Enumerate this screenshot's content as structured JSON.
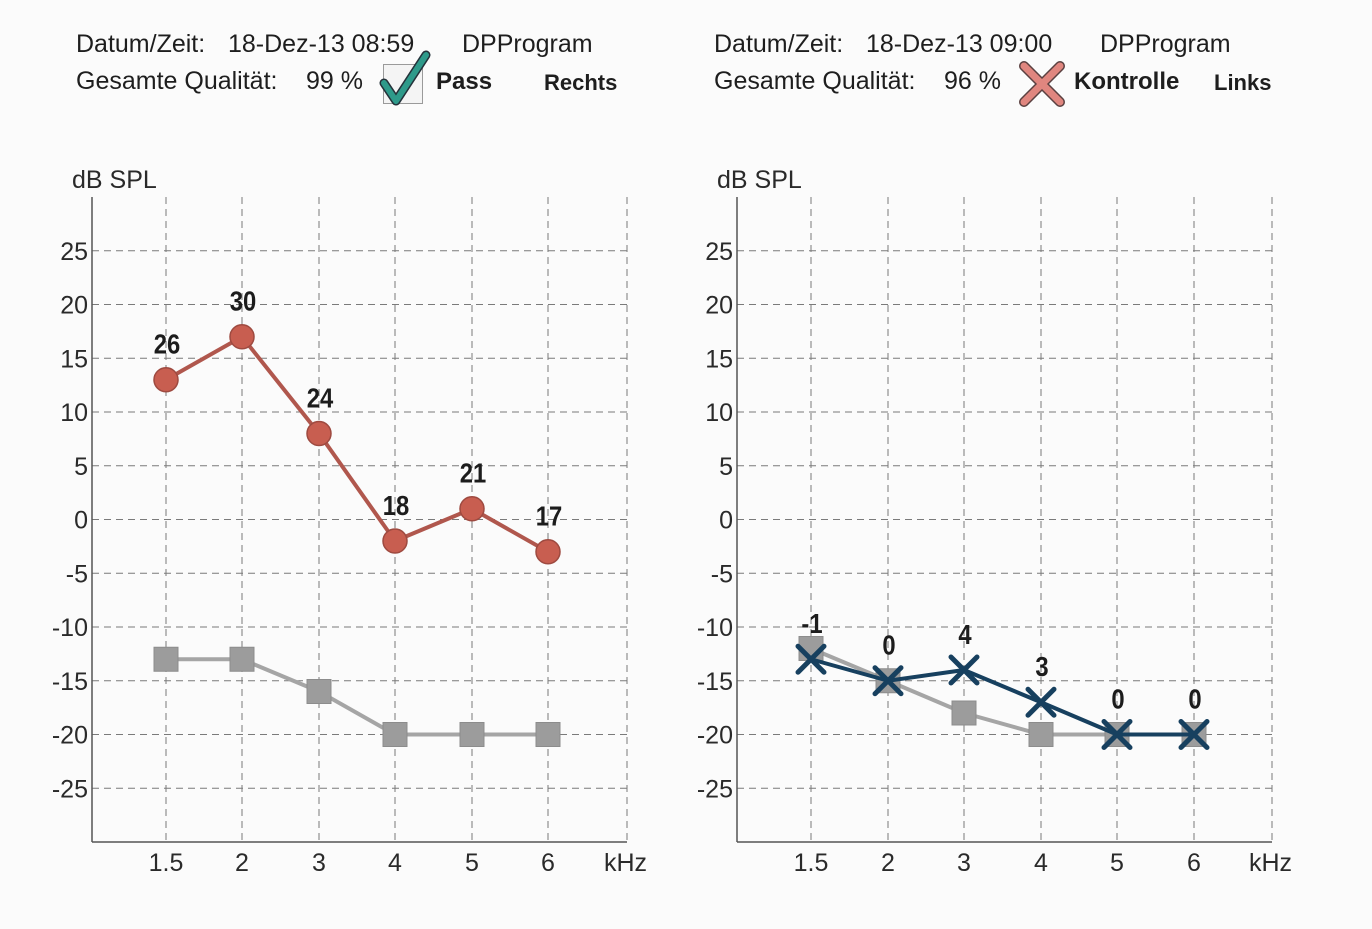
{
  "colors": {
    "right_signal": "#b0574d",
    "right_signal_marker": "#c85e50",
    "left_signal": "#17405f",
    "noise": "#a5a5a5",
    "noise_marker": "#9c9c9c",
    "grid": "#7a7a7a",
    "axis": "#555555",
    "pass_check": "#2e9a8a",
    "fail_cross": "#e0867f"
  },
  "panels": [
    {
      "header": {
        "datetime_label": "Datum/Zeit:",
        "datetime_value": "18-Dez-13 08:59",
        "program": "DPProgram",
        "quality_label": "Gesamte Qualität:",
        "quality_value": "99 %",
        "result_icon": "check-icon",
        "result": "Pass",
        "ear": "Rechts"
      }
    },
    {
      "header": {
        "datetime_label": "Datum/Zeit:",
        "datetime_value": "18-Dez-13 09:00",
        "program": "DPProgram",
        "quality_label": "Gesamte Qualität:",
        "quality_value": "96 %",
        "result_icon": "cross-icon",
        "result": "Kontrolle",
        "ear": "Links"
      }
    }
  ],
  "chart_data": [
    {
      "type": "line",
      "ylabel": "dB SPL",
      "xlabel": "kHz",
      "categories": [
        "1.5",
        "2",
        "3",
        "4",
        "5",
        "6"
      ],
      "yticks": [
        "25",
        "20",
        "15",
        "10",
        "5",
        "0",
        "-5",
        "-10",
        "-15",
        "-20",
        "-25"
      ],
      "ylim": [
        -30,
        30
      ],
      "grid": true,
      "series": [
        {
          "role": "signal",
          "marker": "circle",
          "values": [
            13,
            17,
            8,
            -2,
            1,
            -3
          ],
          "labels": [
            "26",
            "30",
            "24",
            "18",
            "21",
            "17"
          ]
        },
        {
          "role": "noise",
          "marker": "square",
          "values": [
            -13,
            -13,
            -16,
            -20,
            -20,
            -20
          ]
        }
      ]
    },
    {
      "type": "line",
      "ylabel": "dB SPL",
      "xlabel": "kHz",
      "categories": [
        "1.5",
        "2",
        "3",
        "4",
        "5",
        "6"
      ],
      "yticks": [
        "25",
        "20",
        "15",
        "10",
        "5",
        "0",
        "-5",
        "-10",
        "-15",
        "-20",
        "-25"
      ],
      "ylim": [
        -30,
        30
      ],
      "grid": true,
      "series": [
        {
          "role": "signal",
          "marker": "x",
          "values": [
            -13,
            -15,
            -14,
            -17,
            -20,
            -20
          ],
          "labels": [
            "-1",
            "0",
            "4",
            "3",
            "0",
            "0"
          ]
        },
        {
          "role": "noise",
          "marker": "square",
          "values": [
            -12,
            -15,
            -18,
            -20,
            -20,
            -20
          ]
        }
      ]
    }
  ]
}
